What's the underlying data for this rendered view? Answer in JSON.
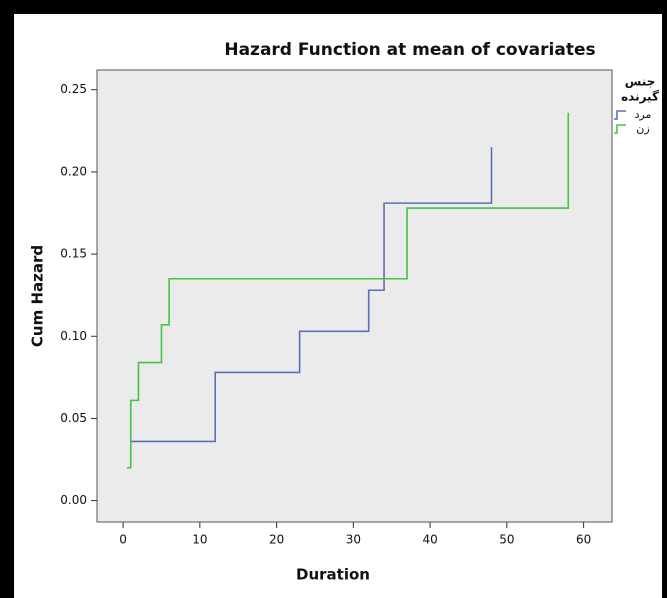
{
  "chart_data": {
    "type": "step",
    "title": "Hazard Function at mean of covariates",
    "x_label": "Duration",
    "y_label": "Cum Hazard",
    "legend_title": [
      "جنس",
      "گیرنده"
    ],
    "legend_position": "right",
    "series": [
      {
        "name": "مرد",
        "color": "#5b6fb8",
        "x": [
          1,
          12,
          23,
          32,
          34,
          48
        ],
        "values": [
          0.036,
          0.078,
          0.103,
          0.128,
          0.181,
          0.215
        ]
      },
      {
        "name": "زن",
        "color": "#44c444",
        "x": [
          0.5,
          1,
          2,
          5,
          6,
          37,
          58
        ],
        "values": [
          0.02,
          0.061,
          0.084,
          0.107,
          0.135,
          0.178,
          0.236
        ]
      }
    ],
    "xlim": [
      -3.4,
      63.7
    ],
    "xticks": [
      0,
      10,
      20,
      30,
      40,
      50,
      60
    ],
    "ylim": [
      -0.013,
      0.262
    ],
    "yticks": [
      {
        "value": 0,
        "label": "0.00"
      },
      0.05,
      {
        "value": 0.1,
        "label": "0.10"
      },
      0.15,
      {
        "value": 0.2,
        "label": "0.20"
      },
      0.25
    ],
    "grid": false
  }
}
